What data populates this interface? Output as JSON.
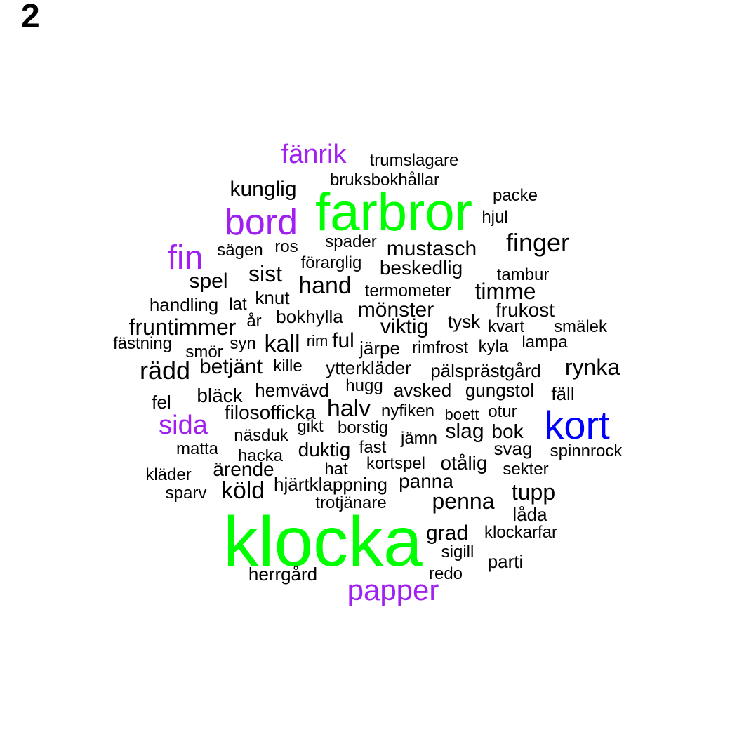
{
  "panel_label": "2",
  "colors": {
    "green": "#00ff00",
    "purple": "#a020f0",
    "blue": "#0000ff",
    "black": "#000000"
  },
  "words": [
    {
      "text": "klocka",
      "color": "green"
    },
    {
      "text": "farbror",
      "color": "green"
    },
    {
      "text": "kort",
      "color": "blue"
    },
    {
      "text": "bord",
      "color": "purple"
    },
    {
      "text": "fin",
      "color": "purple"
    },
    {
      "text": "papper",
      "color": "purple"
    },
    {
      "text": "sida",
      "color": "purple"
    },
    {
      "text": "fänrik",
      "color": "purple"
    },
    {
      "text": "trumslagare",
      "color": "black"
    },
    {
      "text": "bruksbokhållar",
      "color": "black"
    },
    {
      "text": "kunglig",
      "color": "black"
    },
    {
      "text": "packe",
      "color": "black"
    },
    {
      "text": "hjul",
      "color": "black"
    },
    {
      "text": "finger",
      "color": "black"
    },
    {
      "text": "sägen",
      "color": "black"
    },
    {
      "text": "ros",
      "color": "black"
    },
    {
      "text": "spader",
      "color": "black"
    },
    {
      "text": "mustasch",
      "color": "black"
    },
    {
      "text": "förarglig",
      "color": "black"
    },
    {
      "text": "beskedlig",
      "color": "black"
    },
    {
      "text": "tambur",
      "color": "black"
    },
    {
      "text": "spel",
      "color": "black"
    },
    {
      "text": "sist",
      "color": "black"
    },
    {
      "text": "hand",
      "color": "black"
    },
    {
      "text": "termometer",
      "color": "black"
    },
    {
      "text": "timme",
      "color": "black"
    },
    {
      "text": "knut",
      "color": "black"
    },
    {
      "text": "handling",
      "color": "black"
    },
    {
      "text": "lat",
      "color": "black"
    },
    {
      "text": "mönster",
      "color": "black"
    },
    {
      "text": "frukost",
      "color": "black"
    },
    {
      "text": "bokhylla",
      "color": "black"
    },
    {
      "text": "år",
      "color": "black"
    },
    {
      "text": "fruntimmer",
      "color": "black"
    },
    {
      "text": "viktig",
      "color": "black"
    },
    {
      "text": "tysk",
      "color": "black"
    },
    {
      "text": "kvart",
      "color": "black"
    },
    {
      "text": "smälek",
      "color": "black"
    },
    {
      "text": "fästning",
      "color": "black"
    },
    {
      "text": "syn",
      "color": "black"
    },
    {
      "text": "kall",
      "color": "black"
    },
    {
      "text": "rim",
      "color": "black"
    },
    {
      "text": "ful",
      "color": "black"
    },
    {
      "text": "järpe",
      "color": "black"
    },
    {
      "text": "rimfrost",
      "color": "black"
    },
    {
      "text": "kyla",
      "color": "black"
    },
    {
      "text": "lampa",
      "color": "black"
    },
    {
      "text": "smör",
      "color": "black"
    },
    {
      "text": "rädd",
      "color": "black"
    },
    {
      "text": "betjänt",
      "color": "black"
    },
    {
      "text": "kille",
      "color": "black"
    },
    {
      "text": "ytterkläder",
      "color": "black"
    },
    {
      "text": "pälsprästgård",
      "color": "black"
    },
    {
      "text": "rynka",
      "color": "black"
    },
    {
      "text": "hugg",
      "color": "black"
    },
    {
      "text": "hemvävd",
      "color": "black"
    },
    {
      "text": "avsked",
      "color": "black"
    },
    {
      "text": "gungstol",
      "color": "black"
    },
    {
      "text": "fäll",
      "color": "black"
    },
    {
      "text": "bläck",
      "color": "black"
    },
    {
      "text": "fel",
      "color": "black"
    },
    {
      "text": "halv",
      "color": "black"
    },
    {
      "text": "filosofficka",
      "color": "black"
    },
    {
      "text": "nyfiken",
      "color": "black"
    },
    {
      "text": "boett",
      "color": "black"
    },
    {
      "text": "otur",
      "color": "black"
    },
    {
      "text": "gikt",
      "color": "black"
    },
    {
      "text": "borstig",
      "color": "black"
    },
    {
      "text": "slag",
      "color": "black"
    },
    {
      "text": "bok",
      "color": "black"
    },
    {
      "text": "näsduk",
      "color": "black"
    },
    {
      "text": "jämn",
      "color": "black"
    },
    {
      "text": "matta",
      "color": "black"
    },
    {
      "text": "duktig",
      "color": "black"
    },
    {
      "text": "fast",
      "color": "black"
    },
    {
      "text": "svag",
      "color": "black"
    },
    {
      "text": "spinnrock",
      "color": "black"
    },
    {
      "text": "hacka",
      "color": "black"
    },
    {
      "text": "kortspel",
      "color": "black"
    },
    {
      "text": "otålig",
      "color": "black"
    },
    {
      "text": "ärende",
      "color": "black"
    },
    {
      "text": "hat",
      "color": "black"
    },
    {
      "text": "sekter",
      "color": "black"
    },
    {
      "text": "kläder",
      "color": "black"
    },
    {
      "text": "panna",
      "color": "black"
    },
    {
      "text": "hjärtklappning",
      "color": "black"
    },
    {
      "text": "köld",
      "color": "black"
    },
    {
      "text": "tupp",
      "color": "black"
    },
    {
      "text": "sparv",
      "color": "black"
    },
    {
      "text": "penna",
      "color": "black"
    },
    {
      "text": "trotjänare",
      "color": "black"
    },
    {
      "text": "låda",
      "color": "black"
    },
    {
      "text": "grad",
      "color": "black"
    },
    {
      "text": "klockarfar",
      "color": "black"
    },
    {
      "text": "sigill",
      "color": "black"
    },
    {
      "text": "parti",
      "color": "black"
    },
    {
      "text": "herrgård",
      "color": "black"
    },
    {
      "text": "redo",
      "color": "black"
    }
  ]
}
